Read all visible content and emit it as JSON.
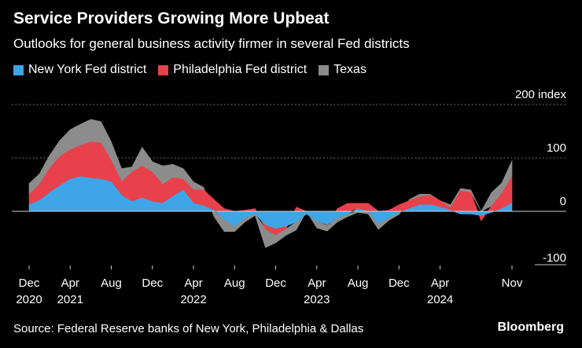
{
  "header": {
    "title": "Service Providers Growing More Upbeat",
    "subtitle": "Outlooks for general business activity firmer in several Fed districts"
  },
  "footer": {
    "source": "Source: Federal Reserve banks of New York, Philadelphia & Dallas",
    "brand": "Bloomberg"
  },
  "colors": {
    "new_york": "#3ea5e6",
    "philadelphia": "#e9414b",
    "texas": "#8c8c8c",
    "grid": "#8a8a8a",
    "text": "#ffffff"
  },
  "chart_data": {
    "type": "area",
    "stacked": true,
    "title": "Service Providers Growing More Upbeat",
    "subtitle": "Outlooks for general business activity firmer in several Fed districts",
    "ylabel": "index",
    "ylim": [
      -100,
      200
    ],
    "yticks": [
      {
        "value": 200,
        "label": "200 index"
      },
      {
        "value": 100,
        "label": "100"
      },
      {
        "value": 0,
        "label": "0"
      },
      {
        "value": -100,
        "label": "-100"
      }
    ],
    "xticks": [
      {
        "month": 0,
        "label": "Dec",
        "year": "2020"
      },
      {
        "month": 4,
        "label": "Apr",
        "year": "2021"
      },
      {
        "month": 8,
        "label": "Aug",
        "year": ""
      },
      {
        "month": 12,
        "label": "Dec",
        "year": ""
      },
      {
        "month": 16,
        "label": "Apr",
        "year": "2022"
      },
      {
        "month": 20,
        "label": "Aug",
        "year": ""
      },
      {
        "month": 24,
        "label": "Dec",
        "year": ""
      },
      {
        "month": 28,
        "label": "Apr",
        "year": "2023"
      },
      {
        "month": 32,
        "label": "Aug",
        "year": ""
      },
      {
        "month": 36,
        "label": "Dec",
        "year": ""
      },
      {
        "month": 40,
        "label": "Apr",
        "year": "2024"
      },
      {
        "month": 47,
        "label": "Nov",
        "year": ""
      }
    ],
    "x_start": "2020-12",
    "x_end": "2024-11",
    "series": [
      {
        "name": "New York Fed district",
        "values": [
          12,
          20,
          35,
          48,
          60,
          65,
          62,
          60,
          55,
          30,
          18,
          25,
          18,
          15,
          28,
          40,
          15,
          10,
          2,
          -15,
          -28,
          -12,
          -5,
          -25,
          -32,
          -28,
          -20,
          -5,
          -18,
          -25,
          -12,
          -5,
          5,
          0,
          -22,
          -12,
          -2,
          5,
          12,
          12,
          8,
          2,
          -5,
          -5,
          -8,
          -2,
          5,
          15
        ]
      },
      {
        "name": "Philadelphia Fed district",
        "values": [
          20,
          30,
          45,
          55,
          55,
          58,
          68,
          68,
          40,
          25,
          55,
          60,
          55,
          35,
          35,
          20,
          25,
          30,
          20,
          5,
          0,
          2,
          5,
          -8,
          -12,
          -5,
          8,
          0,
          0,
          -2,
          5,
          15,
          10,
          15,
          0,
          2,
          12,
          15,
          15,
          18,
          12,
          5,
          38,
          35,
          -10,
          10,
          28,
          50
        ]
      },
      {
        "name": "Texas",
        "values": [
          20,
          20,
          25,
          30,
          38,
          40,
          42,
          40,
          35,
          25,
          10,
          35,
          20,
          35,
          25,
          20,
          15,
          5,
          -10,
          -23,
          -10,
          -8,
          -3,
          -35,
          -15,
          -12,
          -15,
          0,
          -13,
          -10,
          -8,
          -5,
          -2,
          -5,
          -12,
          -5,
          -4,
          2,
          5,
          2,
          0,
          5,
          5,
          5,
          0,
          25,
          20,
          30
        ]
      }
    ]
  }
}
